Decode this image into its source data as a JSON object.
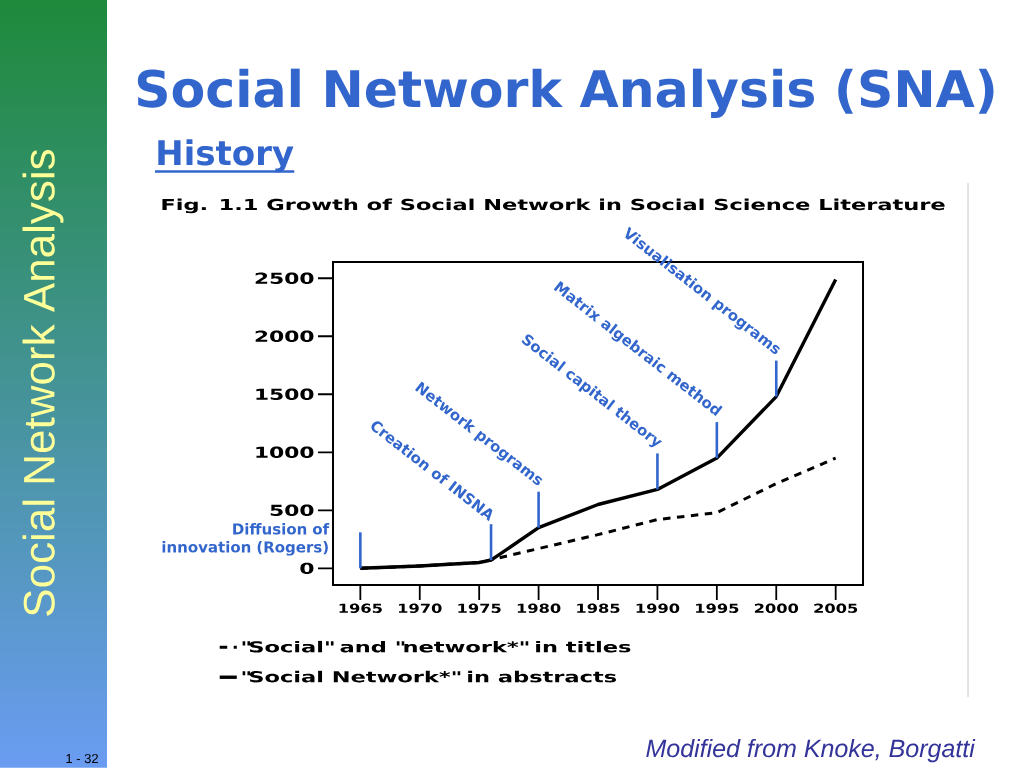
{
  "chart_data": {
    "type": "line",
    "title": "Social Network Analysis (SNA)",
    "subtitle": "History",
    "xlim": [
      1962.7,
      2007.3
    ],
    "ylim": [
      -144,
      2640
    ],
    "xticks": [
      1965,
      1970,
      1975,
      1980,
      1985,
      1990,
      1995,
      2000,
      2005
    ],
    "yticks": [
      0,
      500,
      1000,
      1500,
      2000,
      2500
    ],
    "legend": "bottom",
    "series": [
      {
        "name": "\"Social\" and \"network*\" in titles",
        "color": "#000000",
        "line_style": "dashed",
        "x": [
          1965,
          1970,
          1975,
          1980,
          1985,
          1990,
          1995,
          2000,
          2005
        ],
        "values": [
          0,
          20,
          50,
          170,
          290,
          420,
          480,
          730,
          950
        ]
      },
      {
        "name": "\"Social Network*\" in abstracts",
        "color": "#000000",
        "line_style": "solid",
        "x": [
          1965,
          1970,
          1975,
          1976,
          1980,
          1985,
          1990,
          1995,
          2000,
          2005
        ],
        "values": [
          0,
          20,
          50,
          70,
          350,
          550,
          680,
          950,
          1480,
          2490
        ]
      }
    ],
    "annotations": [
      "Fig. 1.1 Growth of Social Network in Social Science Literature",
      {
        "text": "Diffusion of innovation (Rogers)",
        "x": 1965,
        "y": 0
      },
      {
        "text": "Creation of INSNA",
        "x": 1976,
        "y": 70
      },
      {
        "text": "Network programs",
        "x": 1980,
        "y": 350
      },
      {
        "text": "Social capital theory",
        "x": 1990,
        "y": 680
      },
      {
        "text": "Matrix algebraic method",
        "x": 1995,
        "y": 950
      },
      {
        "text": "Visualisation programs",
        "x": 2000,
        "y": 1480
      },
      "Modified from Knoke, Borgatti",
      "Social Network Analysis",
      "1 - 32"
    ]
  }
}
